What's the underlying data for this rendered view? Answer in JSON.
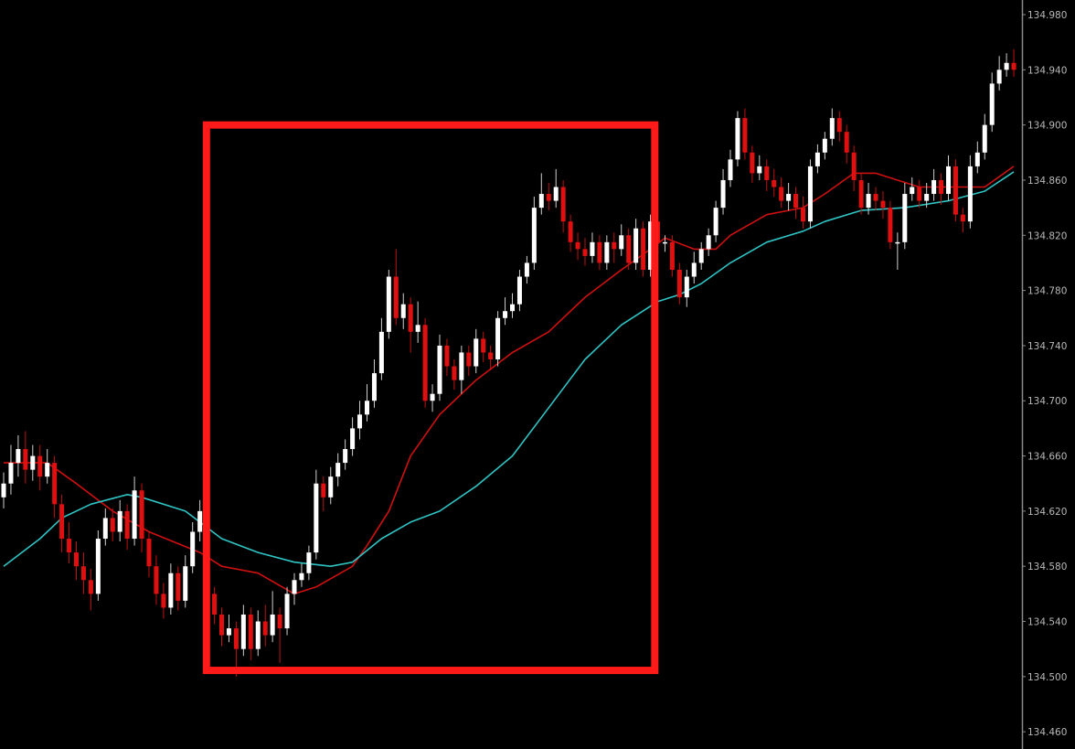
{
  "chart_data": {
    "type": "candlestick",
    "title": "",
    "xlabel": "",
    "ylabel": "",
    "ylim": [
      134.45,
      134.99
    ],
    "grid": false,
    "legend": "none",
    "y_ticks": [
      "134.980",
      "134.940",
      "134.900",
      "134.860",
      "134.820",
      "134.780",
      "134.740",
      "134.700",
      "134.660",
      "134.620",
      "134.580",
      "134.540",
      "134.500",
      "134.460"
    ],
    "candle_fields": [
      "open",
      "high",
      "low",
      "close"
    ],
    "candles": [
      [
        134.63,
        134.648,
        134.622,
        134.64
      ],
      [
        134.64,
        134.668,
        134.632,
        134.655
      ],
      [
        134.655,
        134.675,
        134.645,
        134.665
      ],
      [
        134.665,
        134.678,
        134.64,
        134.65
      ],
      [
        134.65,
        134.668,
        134.642,
        134.66
      ],
      [
        134.66,
        134.668,
        134.635,
        134.645
      ],
      [
        134.645,
        134.665,
        134.64,
        134.655
      ],
      [
        134.655,
        134.66,
        134.615,
        134.625
      ],
      [
        134.625,
        134.632,
        134.59,
        134.6
      ],
      [
        134.6,
        134.612,
        134.582,
        134.59
      ],
      [
        134.59,
        134.598,
        134.57,
        134.58
      ],
      [
        134.58,
        134.59,
        134.56,
        134.57
      ],
      [
        134.57,
        134.578,
        134.548,
        134.56
      ],
      [
        134.56,
        134.606,
        134.555,
        134.6
      ],
      [
        134.6,
        134.622,
        134.595,
        134.615
      ],
      [
        134.615,
        134.622,
        134.598,
        134.605
      ],
      [
        134.605,
        134.628,
        134.598,
        134.62
      ],
      [
        134.62,
        134.625,
        134.592,
        134.6
      ],
      [
        134.6,
        134.645,
        134.595,
        134.635
      ],
      [
        134.635,
        134.64,
        134.59,
        134.6
      ],
      [
        134.6,
        134.605,
        134.572,
        134.58
      ],
      [
        134.58,
        134.588,
        134.552,
        134.56
      ],
      [
        134.56,
        134.568,
        134.542,
        134.55
      ],
      [
        134.55,
        134.582,
        134.545,
        134.575
      ],
      [
        134.575,
        134.58,
        134.548,
        134.555
      ],
      [
        134.555,
        134.588,
        134.55,
        134.58
      ],
      [
        134.58,
        134.612,
        134.575,
        134.605
      ],
      [
        134.605,
        134.628,
        134.598,
        134.62
      ],
      [
        134.62,
        134.625,
        134.552,
        134.56
      ],
      [
        134.56,
        134.565,
        134.538,
        134.545
      ],
      [
        134.545,
        134.55,
        134.522,
        134.53
      ],
      [
        134.53,
        134.545,
        134.525,
        134.535
      ],
      [
        134.535,
        134.54,
        134.5,
        134.52
      ],
      [
        134.52,
        134.552,
        134.515,
        134.545
      ],
      [
        134.545,
        134.55,
        134.512,
        134.52
      ],
      [
        134.52,
        134.548,
        134.515,
        134.54
      ],
      [
        134.54,
        134.552,
        134.522,
        134.53
      ],
      [
        134.53,
        134.562,
        134.525,
        134.545
      ],
      [
        134.545,
        134.55,
        134.51,
        134.535
      ],
      [
        134.535,
        134.565,
        134.53,
        134.56
      ],
      [
        134.56,
        134.575,
        134.552,
        134.57
      ],
      [
        134.57,
        134.582,
        134.565,
        134.575
      ],
      [
        134.575,
        134.595,
        134.57,
        134.59
      ],
      [
        134.59,
        134.65,
        134.585,
        134.64
      ],
      [
        134.64,
        134.645,
        134.62,
        134.63
      ],
      [
        134.63,
        134.652,
        134.625,
        134.645
      ],
      [
        134.645,
        134.662,
        134.638,
        134.655
      ],
      [
        134.655,
        134.672,
        134.65,
        134.665
      ],
      [
        134.665,
        134.688,
        134.66,
        134.68
      ],
      [
        134.68,
        134.7,
        134.672,
        134.69
      ],
      [
        134.69,
        134.712,
        134.685,
        134.7
      ],
      [
        134.7,
        134.73,
        134.695,
        134.72
      ],
      [
        134.72,
        134.76,
        134.715,
        134.75
      ],
      [
        134.75,
        134.795,
        134.745,
        134.79
      ],
      [
        134.79,
        134.81,
        134.755,
        134.76
      ],
      [
        134.76,
        134.778,
        134.752,
        134.77
      ],
      [
        134.77,
        134.775,
        134.735,
        134.75
      ],
      [
        134.75,
        134.772,
        134.742,
        134.755
      ],
      [
        134.755,
        134.76,
        134.695,
        134.7
      ],
      [
        134.7,
        134.712,
        134.692,
        134.705
      ],
      [
        134.705,
        134.748,
        134.7,
        134.74
      ],
      [
        134.74,
        134.745,
        134.718,
        134.725
      ],
      [
        134.725,
        134.73,
        134.708,
        134.715
      ],
      [
        134.715,
        134.74,
        134.705,
        134.735
      ],
      [
        134.735,
        134.74,
        134.718,
        134.725
      ],
      [
        134.725,
        134.752,
        134.72,
        134.745
      ],
      [
        134.745,
        134.75,
        134.728,
        134.735
      ],
      [
        134.735,
        134.74,
        134.722,
        134.73
      ],
      [
        134.73,
        134.765,
        134.725,
        134.76
      ],
      [
        134.76,
        134.775,
        134.755,
        134.765
      ],
      [
        134.765,
        134.778,
        134.76,
        134.77
      ],
      [
        134.77,
        134.795,
        134.765,
        134.79
      ],
      [
        134.79,
        134.805,
        134.785,
        134.8
      ],
      [
        134.8,
        134.848,
        134.795,
        134.84
      ],
      [
        134.84,
        134.865,
        134.835,
        134.85
      ],
      [
        134.85,
        134.858,
        134.838,
        134.845
      ],
      [
        134.845,
        134.868,
        134.84,
        134.855
      ],
      [
        134.855,
        134.86,
        134.822,
        134.83
      ],
      [
        134.83,
        134.835,
        134.808,
        134.815
      ],
      [
        134.815,
        134.822,
        134.802,
        134.81
      ],
      [
        134.81,
        134.818,
        134.798,
        134.805
      ],
      [
        134.805,
        134.822,
        134.8,
        134.815
      ],
      [
        134.815,
        134.82,
        134.795,
        134.8
      ],
      [
        134.8,
        134.82,
        134.795,
        134.815
      ],
      [
        134.815,
        134.822,
        134.8,
        134.81
      ],
      [
        134.81,
        134.828,
        134.805,
        134.82
      ],
      [
        134.82,
        134.825,
        134.795,
        134.8
      ],
      [
        134.8,
        134.832,
        134.795,
        134.825
      ],
      [
        134.825,
        134.83,
        134.79,
        134.795
      ],
      [
        134.795,
        134.835,
        134.79,
        134.83
      ],
      [
        134.83,
        134.835,
        134.81,
        134.815
      ],
      [
        134.815,
        134.82,
        134.808,
        134.815
      ],
      [
        134.815,
        134.82,
        134.79,
        134.795
      ],
      [
        134.795,
        134.8,
        134.77,
        134.775
      ],
      [
        134.775,
        134.795,
        134.768,
        134.79
      ],
      [
        134.79,
        134.808,
        134.785,
        134.8
      ],
      [
        134.8,
        134.815,
        134.795,
        134.81
      ],
      [
        134.81,
        134.825,
        134.805,
        134.82
      ],
      [
        134.82,
        134.845,
        134.815,
        134.84
      ],
      [
        134.84,
        134.868,
        134.835,
        134.86
      ],
      [
        134.86,
        134.882,
        134.855,
        134.875
      ],
      [
        134.875,
        134.91,
        134.87,
        134.905
      ],
      [
        134.905,
        134.912,
        134.875,
        134.88
      ],
      [
        134.88,
        134.885,
        134.858,
        134.865
      ],
      [
        134.865,
        134.878,
        134.86,
        134.87
      ],
      [
        134.87,
        134.875,
        134.852,
        134.86
      ],
      [
        134.86,
        134.868,
        134.848,
        134.855
      ],
      [
        134.855,
        134.862,
        134.84,
        134.845
      ],
      [
        134.845,
        134.858,
        134.838,
        134.85
      ],
      [
        134.85,
        134.855,
        134.832,
        134.84
      ],
      [
        134.84,
        134.848,
        134.825,
        134.83
      ],
      [
        134.83,
        134.875,
        134.825,
        134.87
      ],
      [
        134.87,
        134.886,
        134.865,
        134.88
      ],
      [
        134.88,
        134.895,
        134.875,
        134.89
      ],
      [
        134.89,
        134.912,
        134.885,
        134.905
      ],
      [
        134.905,
        134.91,
        134.888,
        134.895
      ],
      [
        134.895,
        134.9,
        134.872,
        134.88
      ],
      [
        134.88,
        134.885,
        134.852,
        134.86
      ],
      [
        134.86,
        134.865,
        134.835,
        134.84
      ],
      [
        134.84,
        134.858,
        134.835,
        134.85
      ],
      [
        134.85,
        134.855,
        134.838,
        134.845
      ],
      [
        134.845,
        134.852,
        134.832,
        134.84
      ],
      [
        134.84,
        134.845,
        134.81,
        134.815
      ],
      [
        134.815,
        134.822,
        134.795,
        134.815
      ],
      [
        134.815,
        134.858,
        134.81,
        134.85
      ],
      [
        134.85,
        134.862,
        134.845,
        134.855
      ],
      [
        134.855,
        134.86,
        134.84,
        134.845
      ],
      [
        134.845,
        134.858,
        134.84,
        134.85
      ],
      [
        134.85,
        134.868,
        134.845,
        134.86
      ],
      [
        134.86,
        134.865,
        134.842,
        134.85
      ],
      [
        134.85,
        134.878,
        134.845,
        134.87
      ],
      [
        134.87,
        134.875,
        134.83,
        134.835
      ],
      [
        134.835,
        134.84,
        134.822,
        134.83
      ],
      [
        134.83,
        134.878,
        134.825,
        134.87
      ],
      [
        134.87,
        134.888,
        134.865,
        134.88
      ],
      [
        134.88,
        134.908,
        134.875,
        134.9
      ],
      [
        134.9,
        134.938,
        134.895,
        134.93
      ],
      [
        134.93,
        134.95,
        134.925,
        134.94
      ],
      [
        134.94,
        134.952,
        134.935,
        134.945
      ],
      [
        134.945,
        134.955,
        134.935,
        134.94
      ]
    ],
    "moving_averages": [
      {
        "color": "#d01010",
        "points": [
          [
            0,
            134.655
          ],
          [
            6,
            134.655
          ],
          [
            10,
            134.64
          ],
          [
            15,
            134.62
          ],
          [
            20,
            134.605
          ],
          [
            27,
            134.59
          ],
          [
            30,
            134.58
          ],
          [
            35,
            134.575
          ],
          [
            40,
            134.56
          ],
          [
            43,
            134.565
          ],
          [
            48,
            134.58
          ],
          [
            50,
            134.595
          ],
          [
            53,
            134.62
          ],
          [
            56,
            134.66
          ],
          [
            60,
            134.69
          ],
          [
            65,
            134.715
          ],
          [
            70,
            134.735
          ],
          [
            75,
            134.75
          ],
          [
            80,
            134.775
          ],
          [
            85,
            134.795
          ],
          [
            89,
            134.81
          ],
          [
            91,
            134.818
          ],
          [
            95,
            134.81
          ],
          [
            98,
            134.81
          ],
          [
            100,
            134.82
          ],
          [
            105,
            134.835
          ],
          [
            110,
            134.84
          ],
          [
            113,
            134.85
          ],
          [
            117,
            134.865
          ],
          [
            120,
            134.865
          ],
          [
            123,
            134.86
          ],
          [
            126,
            134.855
          ],
          [
            130,
            134.855
          ],
          [
            135,
            134.855
          ],
          [
            139,
            134.87
          ]
        ]
      },
      {
        "color": "#2fc4c4",
        "points": [
          [
            0,
            134.58
          ],
          [
            5,
            134.6
          ],
          [
            8,
            134.615
          ],
          [
            12,
            134.625
          ],
          [
            17,
            134.632
          ],
          [
            19,
            134.63
          ],
          [
            25,
            134.62
          ],
          [
            30,
            134.6
          ],
          [
            35,
            134.59
          ],
          [
            40,
            134.583
          ],
          [
            45,
            134.58
          ],
          [
            48,
            134.583
          ],
          [
            52,
            134.6
          ],
          [
            56,
            134.612
          ],
          [
            60,
            134.62
          ],
          [
            65,
            134.638
          ],
          [
            70,
            134.66
          ],
          [
            75,
            134.695
          ],
          [
            80,
            134.73
          ],
          [
            85,
            134.755
          ],
          [
            90,
            134.772
          ],
          [
            93,
            134.777
          ],
          [
            96,
            134.785
          ],
          [
            100,
            134.8
          ],
          [
            105,
            134.815
          ],
          [
            110,
            134.823
          ],
          [
            113,
            134.83
          ],
          [
            118,
            134.838
          ],
          [
            124,
            134.84
          ],
          [
            130,
            134.845
          ],
          [
            135,
            134.852
          ],
          [
            139,
            134.866
          ]
        ]
      }
    ],
    "annotation": {
      "type": "rectangle",
      "color": "#ff1a1a",
      "from_index": 27.9,
      "to_index": 89.6,
      "price_top": 134.9,
      "price_bottom": 134.5045
    },
    "colors": {
      "bull": "#ffffff",
      "bear": "#e01010",
      "background": "#000000",
      "axis": "#8a8a8a"
    }
  }
}
